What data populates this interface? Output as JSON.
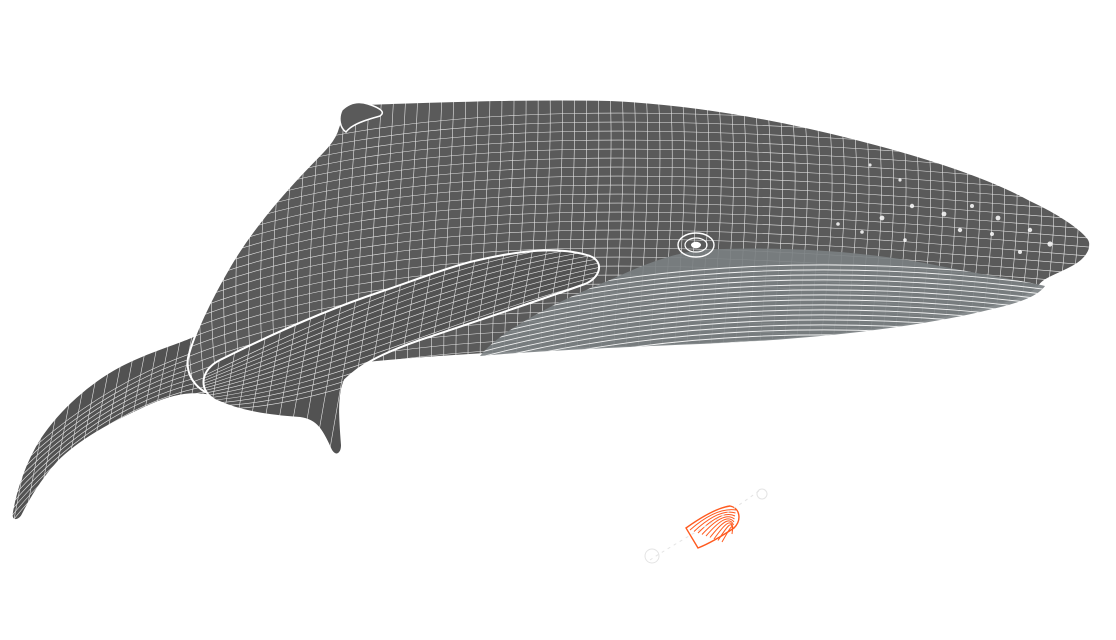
{
  "scene": {
    "subject": "humpback-whale-wireframe-mesh",
    "background_color": "#ffffff",
    "body_color": "#5a5a5a",
    "belly_color": "#7a7f82",
    "flipper_color": "#525252",
    "wire_color": "#ffffff",
    "accent_object": "small-fin-accessory",
    "accent_color": "#ff5a1f",
    "faint_outline_color": "#e4e4e4"
  }
}
